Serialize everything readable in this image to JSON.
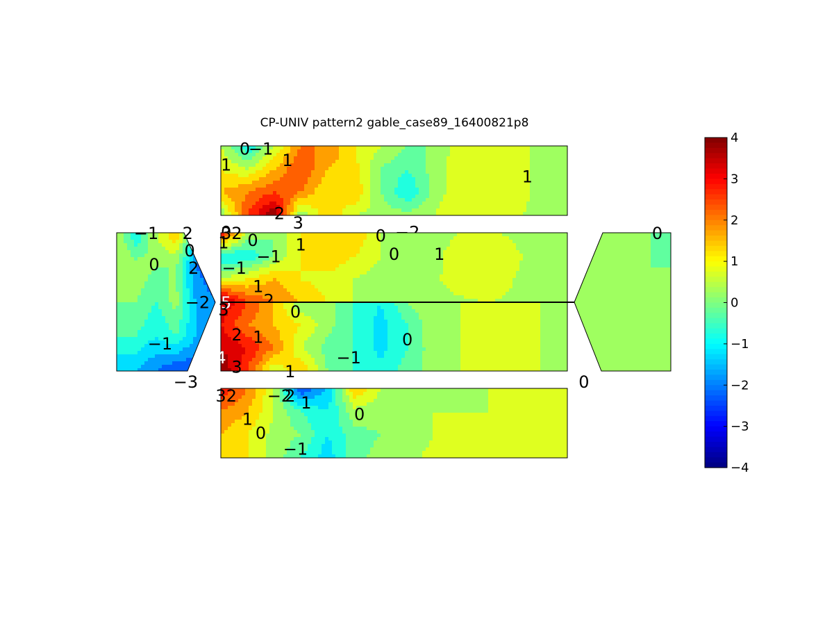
{
  "chart_data": {
    "type": "contour",
    "title": "CP-UNIV pattern2 gable_case89_16400821p8",
    "colorbar": {
      "min": -4,
      "max": 4,
      "ticks": [
        "4",
        "3",
        "2",
        "1",
        "0",
        "−1",
        "−2",
        "−3",
        "−4"
      ],
      "colormap": "jet",
      "placement": "right"
    },
    "faces": [
      {
        "id": "roof-top",
        "field": [
          [
            0.5,
            -1.0,
            0.5,
            2.0,
            2.0,
            1.0,
            0.5,
            0.0,
            0.0,
            0.8,
            1.0,
            0.8,
            0.3,
            0.0
          ],
          [
            1.0,
            0.5,
            1.5,
            2.5,
            1.5,
            1.2,
            0.0,
            -0.5,
            0.2,
            0.9,
            1.0,
            0.8,
            0.3,
            0.0
          ],
          [
            1.5,
            2.0,
            2.5,
            2.0,
            1.0,
            1.5,
            0.0,
            -1.0,
            0.2,
            0.9,
            1.0,
            0.8,
            0.3,
            0.0
          ],
          [
            0.0,
            2.5,
            4.0,
            0.0,
            1.5,
            0.5,
            0.3,
            0.2,
            0.5,
            1.0,
            0.8,
            0.6,
            0.3,
            0.0
          ]
        ],
        "labels": [
          {
            "text": "1",
            "col": 0.2,
            "row": 0.8
          },
          {
            "text": "0",
            "col": 0.9,
            "row": 0.1
          },
          {
            "text": "−1",
            "col": 1.5,
            "row": 0.1
          },
          {
            "text": "1",
            "col": 2.5,
            "row": 0.6
          },
          {
            "text": "1",
            "col": 11.5,
            "row": 1.3
          },
          {
            "text": "0",
            "col": 0.2,
            "row": 3.7
          },
          {
            "text": "2",
            "col": 2.2,
            "row": 2.9
          },
          {
            "text": "3",
            "col": 2.9,
            "row": 3.3
          },
          {
            "text": "4",
            "col": 3.4,
            "row": 3.7,
            "color": "#ffffff"
          },
          {
            "text": "−2",
            "col": 7.0,
            "row": 3.7
          }
        ]
      },
      {
        "id": "wall-upper",
        "field": [
          [
            3.0,
            0.5,
            0.0,
            1.0,
            1.5,
            1.5,
            0.5,
            0.0,
            0.2,
            0.5,
            0.6,
            0.4,
            0.2,
            0.0
          ],
          [
            -1.0,
            -1.0,
            0.0,
            1.0,
            1.5,
            1.0,
            0.5,
            0.2,
            0.3,
            0.9,
            1.0,
            0.6,
            0.3,
            0.0
          ],
          [
            0.5,
            1.0,
            1.5,
            1.0,
            0.8,
            0.5,
            0.3,
            0.2,
            0.4,
            0.8,
            0.9,
            0.5,
            0.3,
            0.0
          ],
          [
            4.0,
            2.5,
            2.0,
            1.5,
            1.0,
            0.5,
            0.3,
            0.3,
            0.3,
            0.4,
            0.5,
            0.4,
            0.2,
            0.0
          ]
        ],
        "labels": [
          {
            "text": "3",
            "col": 0.2,
            "row": 0.0
          },
          {
            "text": "2",
            "col": 0.6,
            "row": 0.0
          },
          {
            "text": "1",
            "col": 0.1,
            "row": 0.4
          },
          {
            "text": "0",
            "col": 1.2,
            "row": 0.3
          },
          {
            "text": "−1",
            "col": 1.8,
            "row": 1.0
          },
          {
            "text": "−1",
            "col": 0.5,
            "row": 1.5
          },
          {
            "text": "1",
            "col": 3.0,
            "row": 0.5
          },
          {
            "text": "0",
            "col": 6.0,
            "row": 0.1
          },
          {
            "text": "0",
            "col": 6.5,
            "row": 0.9
          },
          {
            "text": "1",
            "col": 8.2,
            "row": 0.9
          },
          {
            "text": "1",
            "col": 1.4,
            "row": 2.3
          },
          {
            "text": "2",
            "col": 1.8,
            "row": 2.9
          }
        ]
      },
      {
        "id": "wall-lower",
        "field": [
          [
            3.5,
            2.5,
            1.5,
            0.0,
            0.2,
            -0.5,
            -1.0,
            0.0,
            0.4,
            0.5,
            0.5,
            0.5,
            0.5,
            0.4
          ],
          [
            3.0,
            2.0,
            1.5,
            1.0,
            0.2,
            -0.5,
            -1.2,
            -0.5,
            0.4,
            0.5,
            0.5,
            0.5,
            0.5,
            0.4
          ],
          [
            3.5,
            3.0,
            2.0,
            0.5,
            -0.2,
            -0.5,
            -1.2,
            -0.5,
            0.3,
            0.5,
            0.5,
            0.5,
            0.5,
            0.4
          ],
          [
            4.0,
            2.5,
            0.5,
            1.5,
            0.0,
            -0.5,
            -0.8,
            -0.3,
            0.3,
            0.5,
            0.5,
            0.5,
            0.5,
            0.4
          ]
        ],
        "labels": [
          {
            "text": "5",
            "col": 0.2,
            "row": 0.0,
            "color": "#ffffff"
          },
          {
            "text": "3",
            "col": 0.1,
            "row": 0.3
          },
          {
            "text": "0",
            "col": 2.8,
            "row": 0.4
          },
          {
            "text": "2",
            "col": 0.6,
            "row": 1.4
          },
          {
            "text": "1",
            "col": 1.4,
            "row": 1.5
          },
          {
            "text": "0",
            "col": 7.0,
            "row": 1.6
          },
          {
            "text": "−1",
            "col": 4.8,
            "row": 2.4
          },
          {
            "text": "4",
            "col": 0.0,
            "row": 2.4,
            "color": "#ffffff"
          },
          {
            "text": "3",
            "col": 0.6,
            "row": 2.8
          },
          {
            "text": "1",
            "col": 2.6,
            "row": 3.0
          }
        ]
      },
      {
        "id": "roof-bottom",
        "field": [
          [
            3.0,
            2.0,
            0.5,
            -2.5,
            -1.5,
            1.5,
            0.5,
            0.2,
            0.3,
            0.4,
            0.5,
            0.5,
            0.5,
            0.6
          ],
          [
            2.0,
            1.5,
            0.5,
            -0.5,
            -1.0,
            0.3,
            0.2,
            0.2,
            0.5,
            0.5,
            0.5,
            0.5,
            0.5,
            0.8
          ],
          [
            1.5,
            1.0,
            0.3,
            0.0,
            -1.0,
            -0.2,
            0.0,
            0.3,
            0.5,
            0.5,
            0.5,
            0.5,
            0.5,
            0.7
          ],
          [
            1.5,
            1.0,
            0.3,
            -0.5,
            -1.3,
            -0.2,
            0.2,
            0.4,
            0.6,
            0.5,
            0.5,
            0.5,
            0.5,
            0.6
          ]
        ],
        "labels": [
          {
            "text": "3",
            "col": 0.0,
            "row": 0.3
          },
          {
            "text": "2",
            "col": 0.4,
            "row": 0.3
          },
          {
            "text": "−2",
            "col": 2.2,
            "row": 0.3
          },
          {
            "text": "2",
            "col": 2.6,
            "row": 0.3
          },
          {
            "text": "1",
            "col": 3.2,
            "row": 0.6
          },
          {
            "text": "0",
            "col": 5.2,
            "row": 1.1
          },
          {
            "text": "1",
            "col": 1.0,
            "row": 1.3
          },
          {
            "text": "0",
            "col": 1.5,
            "row": 1.9
          },
          {
            "text": "−1",
            "col": 2.8,
            "row": 2.6
          }
        ]
      },
      {
        "id": "gable-left",
        "field": [
          [
            0.5,
            -1.0,
            0.5,
            1.5,
            -1.0,
            2.0
          ],
          [
            0.5,
            0.3,
            0.0,
            0.0,
            -2.0,
            -2.5
          ],
          [
            0.0,
            0.0,
            -0.5,
            0.2,
            -1.5,
            -2.0
          ],
          [
            -0.5,
            -0.5,
            -1.0,
            -0.5,
            -1.5,
            -1.5
          ],
          [
            -1.5,
            -1.5,
            -2.0,
            -2.5,
            -2.5,
            -2.5
          ]
        ],
        "labels": [
          {
            "text": "−1",
            "col": 1.5,
            "row": 0.0
          },
          {
            "text": "2",
            "col": 3.6,
            "row": 0.0
          },
          {
            "text": "0",
            "col": 3.7,
            "row": 0.5
          },
          {
            "text": "2",
            "col": 3.9,
            "row": 1.0
          },
          {
            "text": "0",
            "col": 1.9,
            "row": 0.9
          },
          {
            "text": "−2",
            "col": 4.1,
            "row": 2.0
          },
          {
            "text": "−1",
            "col": 2.2,
            "row": 3.2
          },
          {
            "text": "−3",
            "col": 3.5,
            "row": 4.3
          }
        ]
      },
      {
        "id": "gable-right",
        "field": [
          [
            0.0,
            0.0,
            0.0,
            0.0,
            0.0,
            -0.2
          ],
          [
            0.0,
            0.0,
            0.0,
            0.0,
            0.0,
            0.0
          ],
          [
            0.0,
            0.0,
            0.0,
            0.0,
            0.0,
            0.0
          ],
          [
            0.3,
            0.3,
            0.3,
            0.3,
            0.3,
            0.3
          ],
          [
            0.5,
            0.5,
            0.5,
            0.5,
            0.5,
            0.5
          ]
        ],
        "labels": [
          {
            "text": "0",
            "col": 4.3,
            "row": 0.0
          },
          {
            "text": "0",
            "col": 0.5,
            "row": 4.3
          }
        ]
      }
    ]
  }
}
